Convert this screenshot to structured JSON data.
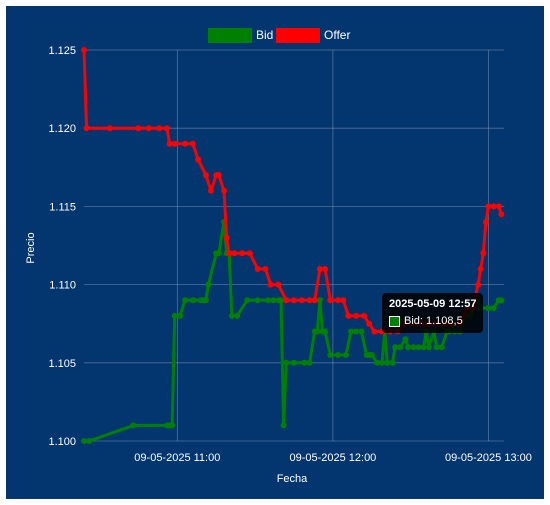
{
  "chart_data": {
    "type": "line",
    "title": "",
    "xlabel": "Fecha",
    "ylabel": "Precio",
    "legend_position": "top-center",
    "grid": true,
    "x_ticks": [
      "09-05-2025 11:00",
      "09-05-2025 12:00",
      "09-05-2025 13:00"
    ],
    "x_range": [
      "2025-05-09 10:24",
      "2025-05-09 13:06"
    ],
    "y_ticks": [
      "1.100",
      "1.105",
      "1.110",
      "1.115",
      "1.120",
      "1.125"
    ],
    "ylim": [
      1.1,
      1.125
    ],
    "series": [
      {
        "name": "Bid",
        "color": "#008000",
        "points": [
          [
            "2025-05-09 10:24",
            1.1
          ],
          [
            "2025-05-09 10:26",
            1.1
          ],
          [
            "2025-05-09 10:43",
            1.101
          ],
          [
            "2025-05-09 10:56",
            1.101
          ],
          [
            "2025-05-09 10:57",
            1.101
          ],
          [
            "2025-05-09 10:58",
            1.101
          ],
          [
            "2025-05-09 10:59",
            1.108
          ],
          [
            "2025-05-09 11:01",
            1.108
          ],
          [
            "2025-05-09 11:03",
            1.109
          ],
          [
            "2025-05-09 11:06",
            1.109
          ],
          [
            "2025-05-09 11:09",
            1.109
          ],
          [
            "2025-05-09 11:10",
            1.109
          ],
          [
            "2025-05-09 11:11",
            1.109
          ],
          [
            "2025-05-09 11:12",
            1.11
          ],
          [
            "2025-05-09 11:15",
            1.112
          ],
          [
            "2025-05-09 11:16",
            1.112
          ],
          [
            "2025-05-09 11:18",
            1.114
          ],
          [
            "2025-05-09 11:19",
            1.112
          ],
          [
            "2025-05-09 11:20",
            1.112
          ],
          [
            "2025-05-09 11:21",
            1.108
          ],
          [
            "2025-05-09 11:23",
            1.108
          ],
          [
            "2025-05-09 11:27",
            1.109
          ],
          [
            "2025-05-09 11:31",
            1.109
          ],
          [
            "2025-05-09 11:35",
            1.109
          ],
          [
            "2025-05-09 11:37",
            1.109
          ],
          [
            "2025-05-09 11:39",
            1.109
          ],
          [
            "2025-05-09 11:40",
            1.109
          ],
          [
            "2025-05-09 11:41",
            1.101
          ],
          [
            "2025-05-09 11:42",
            1.105
          ],
          [
            "2025-05-09 11:45",
            1.105
          ],
          [
            "2025-05-09 11:49",
            1.105
          ],
          [
            "2025-05-09 11:51",
            1.105
          ],
          [
            "2025-05-09 11:53",
            1.107
          ],
          [
            "2025-05-09 11:54",
            1.107
          ],
          [
            "2025-05-09 11:55",
            1.109
          ],
          [
            "2025-05-09 11:56",
            1.107
          ],
          [
            "2025-05-09 11:57",
            1.107
          ],
          [
            "2025-05-09 11:59",
            1.1055
          ],
          [
            "2025-05-09 12:02",
            1.1055
          ],
          [
            "2025-05-09 12:05",
            1.1055
          ],
          [
            "2025-05-09 12:07",
            1.107
          ],
          [
            "2025-05-09 12:09",
            1.107
          ],
          [
            "2025-05-09 12:11",
            1.107
          ],
          [
            "2025-05-09 12:13",
            1.1055
          ],
          [
            "2025-05-09 12:14",
            1.1055
          ],
          [
            "2025-05-09 12:15",
            1.1055
          ],
          [
            "2025-05-09 12:17",
            1.105
          ],
          [
            "2025-05-09 12:19",
            1.105
          ],
          [
            "2025-05-09 12:20",
            1.107
          ],
          [
            "2025-05-09 12:21",
            1.105
          ],
          [
            "2025-05-09 12:23",
            1.105
          ],
          [
            "2025-05-09 12:24",
            1.106
          ],
          [
            "2025-05-09 12:26",
            1.106
          ],
          [
            "2025-05-09 12:28",
            1.1065
          ],
          [
            "2025-05-09 12:29",
            1.106
          ],
          [
            "2025-05-09 12:31",
            1.106
          ],
          [
            "2025-05-09 12:33",
            1.106
          ],
          [
            "2025-05-09 12:35",
            1.106
          ],
          [
            "2025-05-09 12:36",
            1.107
          ],
          [
            "2025-05-09 12:37",
            1.106
          ],
          [
            "2025-05-09 12:39",
            1.107
          ],
          [
            "2025-05-09 12:40",
            1.106
          ],
          [
            "2025-05-09 12:42",
            1.106
          ],
          [
            "2025-05-09 12:44",
            1.107
          ],
          [
            "2025-05-09 12:45",
            1.107
          ],
          [
            "2025-05-09 12:47",
            1.107
          ],
          [
            "2025-05-09 12:49",
            1.107
          ],
          [
            "2025-05-09 12:51",
            1.108
          ],
          [
            "2025-05-09 12:53",
            1.108
          ],
          [
            "2025-05-09 12:55",
            1.109
          ],
          [
            "2025-05-09 12:57",
            1.1085
          ],
          [
            "2025-05-09 13:00",
            1.1085
          ],
          [
            "2025-05-09 13:02",
            1.1085
          ],
          [
            "2025-05-09 13:04",
            1.109
          ],
          [
            "2025-05-09 13:05",
            1.109
          ]
        ]
      },
      {
        "name": "Offer",
        "color": "#ff0000",
        "points": [
          [
            "2025-05-09 10:24",
            1.125
          ],
          [
            "2025-05-09 10:25",
            1.12
          ],
          [
            "2025-05-09 10:34",
            1.12
          ],
          [
            "2025-05-09 10:45",
            1.12
          ],
          [
            "2025-05-09 10:49",
            1.12
          ],
          [
            "2025-05-09 10:53",
            1.12
          ],
          [
            "2025-05-09 10:56",
            1.12
          ],
          [
            "2025-05-09 10:57",
            1.119
          ],
          [
            "2025-05-09 10:59",
            1.119
          ],
          [
            "2025-05-09 11:03",
            1.119
          ],
          [
            "2025-05-09 11:06",
            1.119
          ],
          [
            "2025-05-09 11:08",
            1.118
          ],
          [
            "2025-05-09 11:11",
            1.117
          ],
          [
            "2025-05-09 11:13",
            1.116
          ],
          [
            "2025-05-09 11:15",
            1.117
          ],
          [
            "2025-05-09 11:16",
            1.117
          ],
          [
            "2025-05-09 11:18",
            1.116
          ],
          [
            "2025-05-09 11:19",
            1.113
          ],
          [
            "2025-05-09 11:20",
            1.112
          ],
          [
            "2025-05-09 11:22",
            1.112
          ],
          [
            "2025-05-09 11:25",
            1.112
          ],
          [
            "2025-05-09 11:28",
            1.112
          ],
          [
            "2025-05-09 11:31",
            1.111
          ],
          [
            "2025-05-09 11:34",
            1.111
          ],
          [
            "2025-05-09 11:36",
            1.11
          ],
          [
            "2025-05-09 11:39",
            1.11
          ],
          [
            "2025-05-09 11:42",
            1.109
          ],
          [
            "2025-05-09 11:45",
            1.109
          ],
          [
            "2025-05-09 11:48",
            1.109
          ],
          [
            "2025-05-09 11:51",
            1.109
          ],
          [
            "2025-05-09 11:53",
            1.109
          ],
          [
            "2025-05-09 11:55",
            1.111
          ],
          [
            "2025-05-09 11:57",
            1.111
          ],
          [
            "2025-05-09 11:59",
            1.109
          ],
          [
            "2025-05-09 12:02",
            1.109
          ],
          [
            "2025-05-09 12:04",
            1.109
          ],
          [
            "2025-05-09 12:06",
            1.108
          ],
          [
            "2025-05-09 12:09",
            1.108
          ],
          [
            "2025-05-09 12:12",
            1.108
          ],
          [
            "2025-05-09 12:14",
            1.1075
          ],
          [
            "2025-05-09 12:16",
            1.107
          ],
          [
            "2025-05-09 12:19",
            1.107
          ],
          [
            "2025-05-09 12:22",
            1.107
          ],
          [
            "2025-05-09 12:25",
            1.107
          ],
          [
            "2025-05-09 12:28",
            1.1075
          ],
          [
            "2025-05-09 12:31",
            1.1075
          ],
          [
            "2025-05-09 12:34",
            1.1075
          ],
          [
            "2025-05-09 12:37",
            1.1075
          ],
          [
            "2025-05-09 12:40",
            1.1075
          ],
          [
            "2025-05-09 12:43",
            1.1075
          ],
          [
            "2025-05-09 12:46",
            1.1075
          ],
          [
            "2025-05-09 12:49",
            1.1075
          ],
          [
            "2025-05-09 12:52",
            1.1085
          ],
          [
            "2025-05-09 12:54",
            1.1085
          ],
          [
            "2025-05-09 12:56",
            1.11
          ],
          [
            "2025-05-09 12:57",
            1.111
          ],
          [
            "2025-05-09 12:58",
            1.112
          ],
          [
            "2025-05-09 12:59",
            1.114
          ],
          [
            "2025-05-09 13:00",
            1.115
          ],
          [
            "2025-05-09 13:02",
            1.115
          ],
          [
            "2025-05-09 13:04",
            1.115
          ],
          [
            "2025-05-09 13:05",
            1.1145
          ]
        ]
      }
    ],
    "tooltip": {
      "title": "2025-05-09 12:57",
      "series": "Bid",
      "text": "Bid: 1.108,5",
      "x": "2025-05-09 12:57",
      "y": 1.1085
    }
  }
}
